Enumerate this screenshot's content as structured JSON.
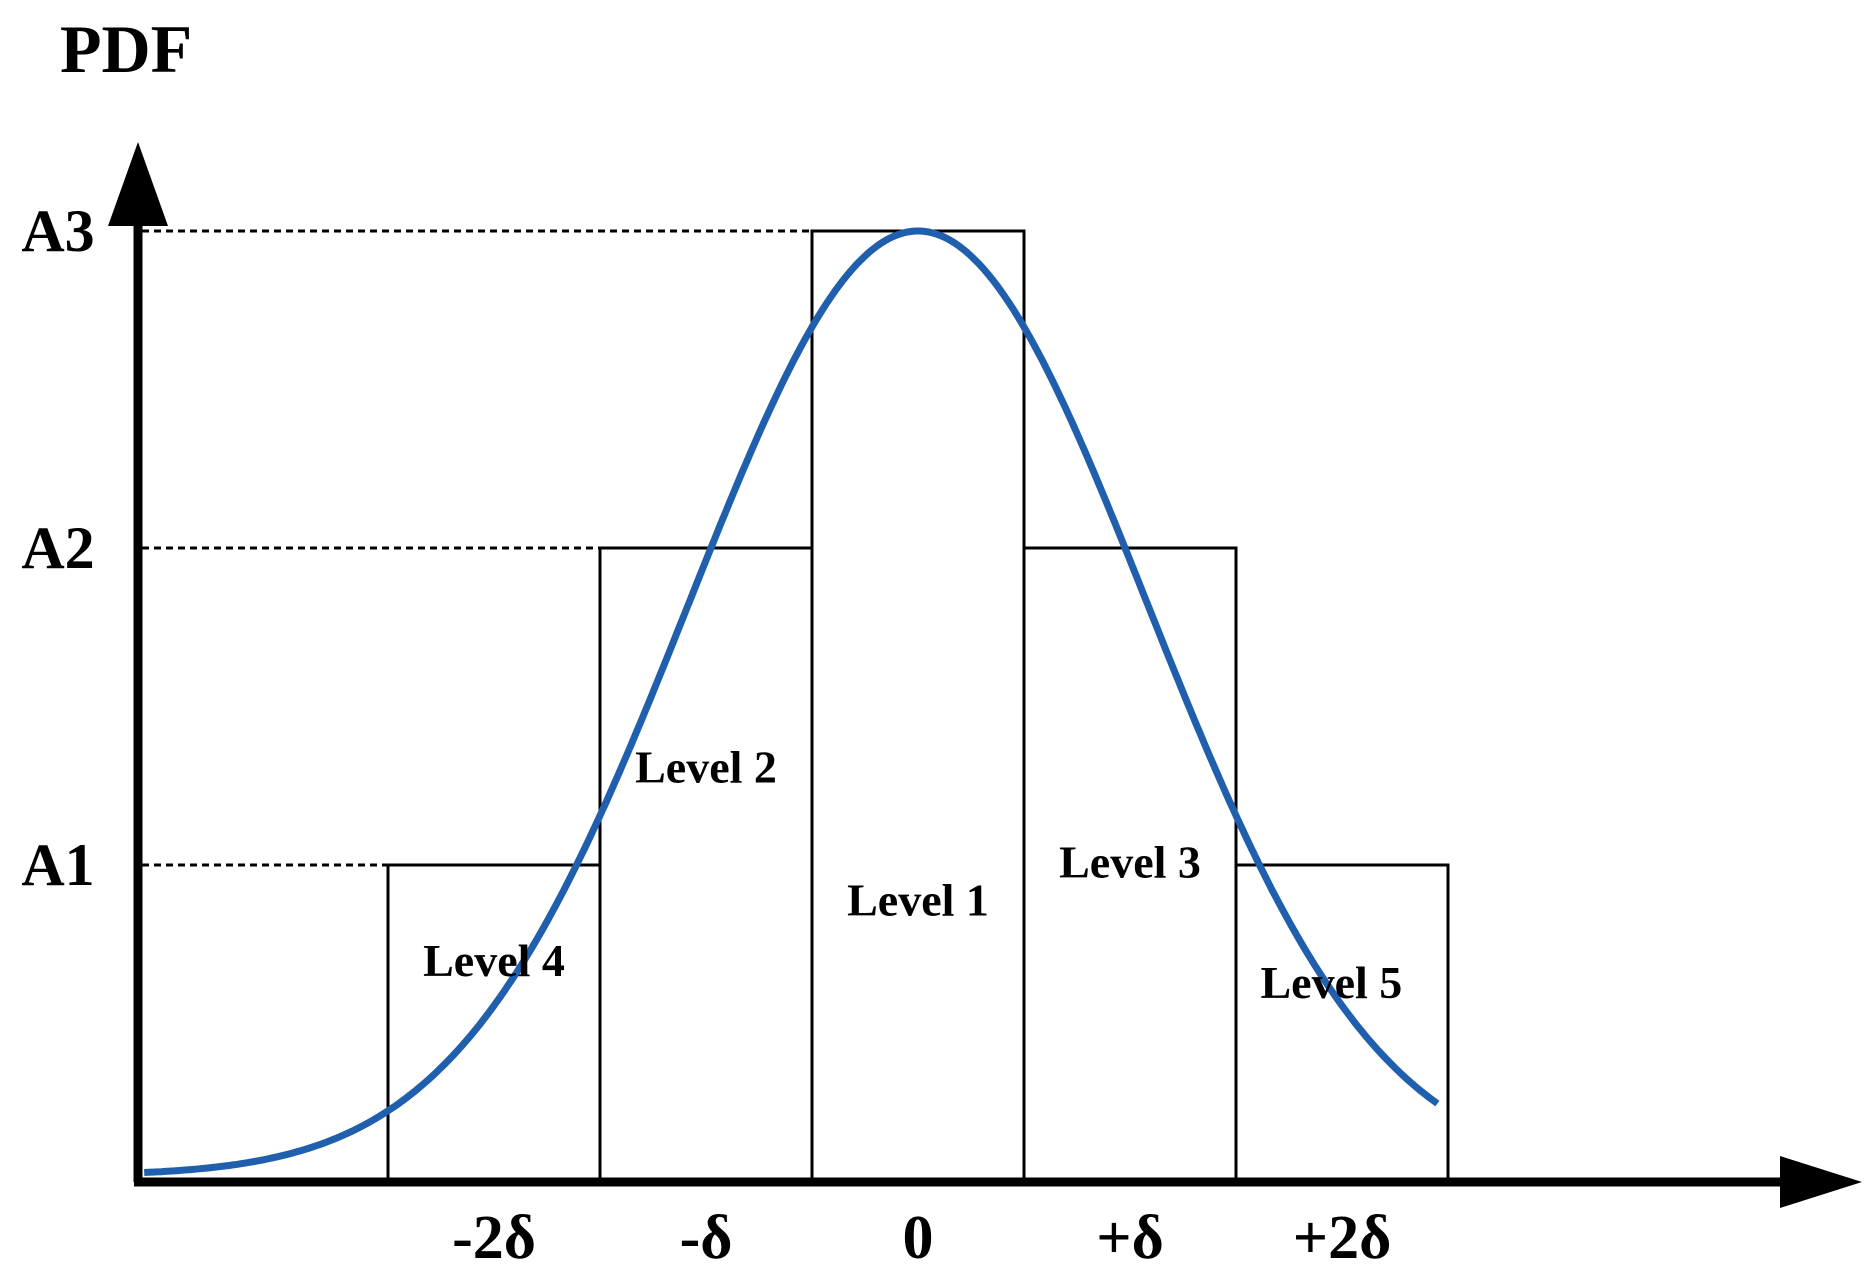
{
  "y_axis_title": "PDF",
  "y_levels": [
    {
      "label": "A1",
      "value": 1
    },
    {
      "label": "A2",
      "value": 2
    },
    {
      "label": "A3",
      "value": 3
    }
  ],
  "x_ticks": [
    "-2δ",
    "-δ",
    "0",
    "+δ",
    "+2δ"
  ],
  "bars": [
    {
      "label": "Level 4",
      "center": -2,
      "height": 1
    },
    {
      "label": "Level 2",
      "center": -1,
      "height": 2
    },
    {
      "label": "Level 1",
      "center": 0,
      "height": 3
    },
    {
      "label": "Level 3",
      "center": 1,
      "height": 2
    },
    {
      "label": "Level 5",
      "center": 2,
      "height": 1
    }
  ],
  "curve": {
    "type": "gaussian",
    "mean": 0,
    "peak": 3,
    "color": "#1f5fae"
  }
}
